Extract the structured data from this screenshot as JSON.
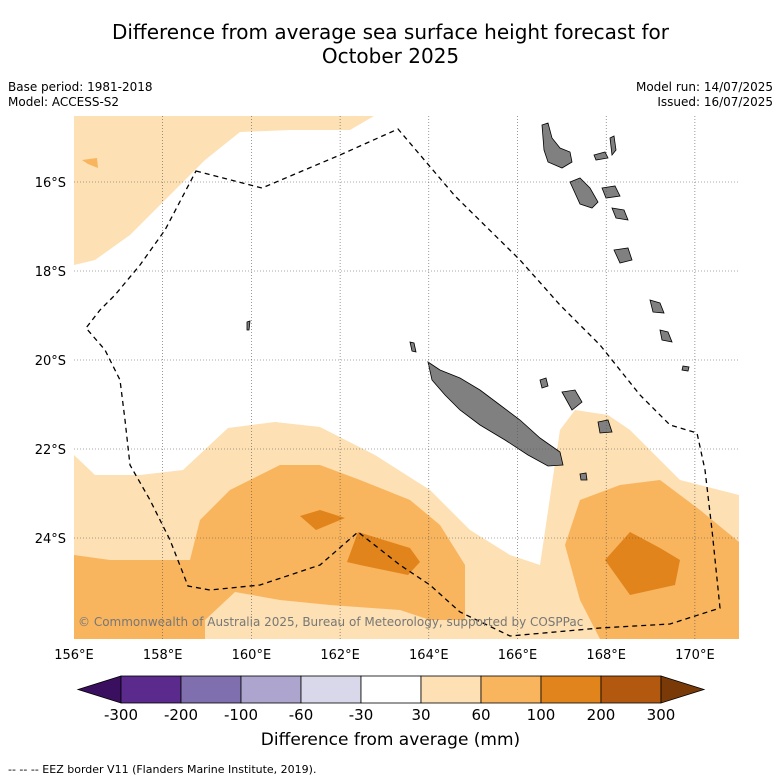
{
  "title_line1": "Difference from average sea surface height forecast for",
  "title_line2": "October 2025",
  "meta": {
    "base_period": "Base period: 1981-2018",
    "model": "Model: ACCESS-S2",
    "model_run": "Model run: 14/07/2025",
    "issued": "Issued: 16/07/2025"
  },
  "map": {
    "lon_ticks": [
      "156°E",
      "158°E",
      "160°E",
      "162°E",
      "164°E",
      "166°E",
      "168°E",
      "170°E"
    ],
    "lat_ticks": [
      "16°S",
      "18°S",
      "20°S",
      "22°S",
      "24°S"
    ],
    "copyright": "© Commonwealth of Australia 2025, Bureau of Meteorology, supported by COSPPac",
    "land_color": "#808080",
    "eez_style": "dashed"
  },
  "colorbar": {
    "ticks": [
      "-300",
      "-200",
      "-100",
      "-60",
      "-30",
      "30",
      "60",
      "100",
      "200",
      "300"
    ],
    "colors": [
      "#3b0f5f",
      "#5a2a8c",
      "#7f6fae",
      "#aea5cf",
      "#d8d8ea",
      "#ffffff",
      "#fde0b3",
      "#f9b45e",
      "#e1841c",
      "#b3590f",
      "#7a3a08"
    ],
    "label": "Difference from average (mm)"
  },
  "legend_note": "--  --  -- EEZ border V11 (Flanders Marine Institute, 2019)."
}
